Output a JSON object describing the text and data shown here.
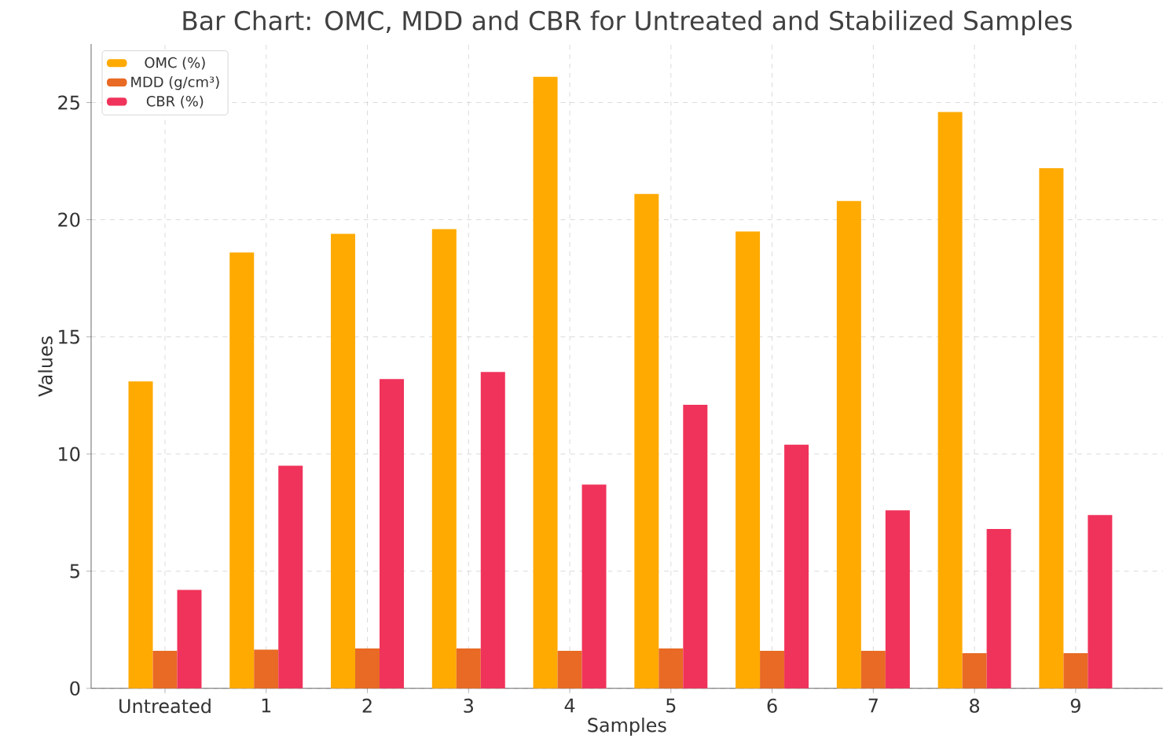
{
  "chart_data": {
    "type": "bar",
    "title": "Bar Chart: OMC, MDD and CBR for Untreated and Stabilized Samples",
    "xlabel": "Samples",
    "ylabel": "Values",
    "categories": [
      "Untreated",
      "1",
      "2",
      "3",
      "4",
      "5",
      "6",
      "7",
      "8",
      "9"
    ],
    "series": [
      {
        "name": "OMC (%)",
        "color": "#ffaa00",
        "values": [
          13.1,
          18.6,
          19.4,
          19.6,
          26.1,
          21.1,
          19.5,
          20.8,
          24.6,
          22.2
        ]
      },
      {
        "name": "MDD (g/cm³)",
        "color": "#e86a24",
        "values": [
          1.6,
          1.65,
          1.7,
          1.7,
          1.6,
          1.7,
          1.6,
          1.6,
          1.5,
          1.5
        ]
      },
      {
        "name": "CBR (%)",
        "color": "#f0335a",
        "values": [
          4.2,
          9.5,
          13.2,
          13.5,
          8.7,
          12.1,
          10.4,
          7.6,
          6.8,
          7.4
        ]
      }
    ],
    "ylim": [
      0,
      27.5
    ],
    "yticks": [
      0,
      5,
      10,
      15,
      20,
      25
    ],
    "grid": true,
    "legend": "top left"
  }
}
